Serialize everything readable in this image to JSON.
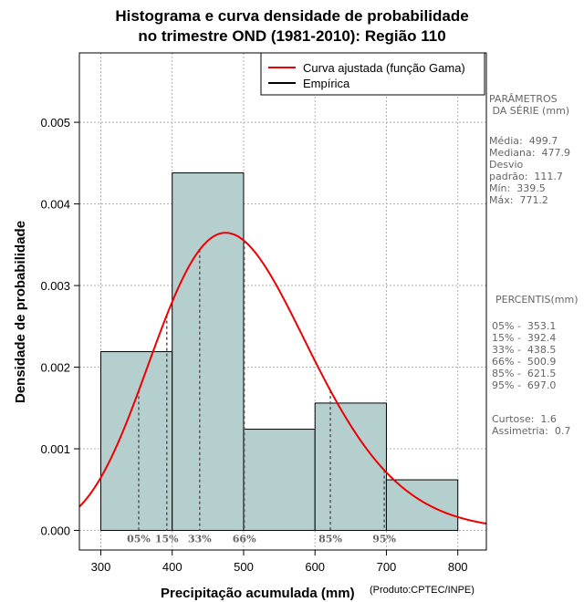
{
  "chart_data": {
    "type": "bar",
    "title_line1": "Histograma e curva densidade de probabilidade",
    "title_line2": "no trimestre OND (1981-2010): Região 110",
    "xlabel": "Precipitação acumulada (mm)",
    "ylabel": "Densidade de probabilidade",
    "credit": "(Produto:CPTEC/INPE)",
    "xlim": [
      270,
      840
    ],
    "ylim": [
      -0.00024,
      0.00585
    ],
    "xticks": [
      300,
      400,
      500,
      600,
      700,
      800
    ],
    "yticks": [
      0.0,
      0.001,
      0.002,
      0.003,
      0.004,
      0.005
    ],
    "ytick_labels": [
      "0.000",
      "0.001",
      "0.002",
      "0.003",
      "0.004",
      "0.005"
    ],
    "bins": [
      {
        "x0": 300,
        "x1": 400,
        "density": 0.00219
      },
      {
        "x0": 400,
        "x1": 500,
        "density": 0.00438
      },
      {
        "x0": 500,
        "x1": 600,
        "density": 0.00124
      },
      {
        "x0": 600,
        "x1": 700,
        "density": 0.00156
      },
      {
        "x0": 700,
        "x1": 800,
        "density": 0.00062
      }
    ],
    "curve": {
      "type": "gamma",
      "shape": 20.0,
      "scale": 24.99,
      "mean": 499.7,
      "sd": 111.7
    },
    "legend": [
      {
        "label": "Curva ajustada (função Gama)",
        "color": "#ee0000"
      },
      {
        "label": "Empírica",
        "color": "#000000"
      }
    ],
    "bar_color": "#b5cece",
    "curve_color": "#ee0000",
    "percentile_markers": [
      {
        "label": "05%",
        "value": 353.1
      },
      {
        "label": "15%",
        "value": 392.4
      },
      {
        "label": "33%",
        "value": 438.5
      },
      {
        "label": "66%",
        "value": 500.9
      },
      {
        "label": "85%",
        "value": 621.5
      },
      {
        "label": "95%",
        "value": 697.0
      }
    ]
  },
  "sidebar": {
    "params_heading": "PARÂMETROS\n DA SÉRIE (mm)",
    "params_body": "Média:  499.7\nMediana:  477.9\nDesvio\npadrão:  111.7\nMín:  339.5\nMáx:  771.2",
    "percentis_heading": "PERCENTIS(mm)",
    "percentis_body": "05% -  353.1\n15% -  392.4\n33% -  438.5\n66% -  500.9\n85% -  621.5\n95% -  697.0",
    "stats_body": "Curtose:  1.6\nAssimetria:  0.7"
  }
}
